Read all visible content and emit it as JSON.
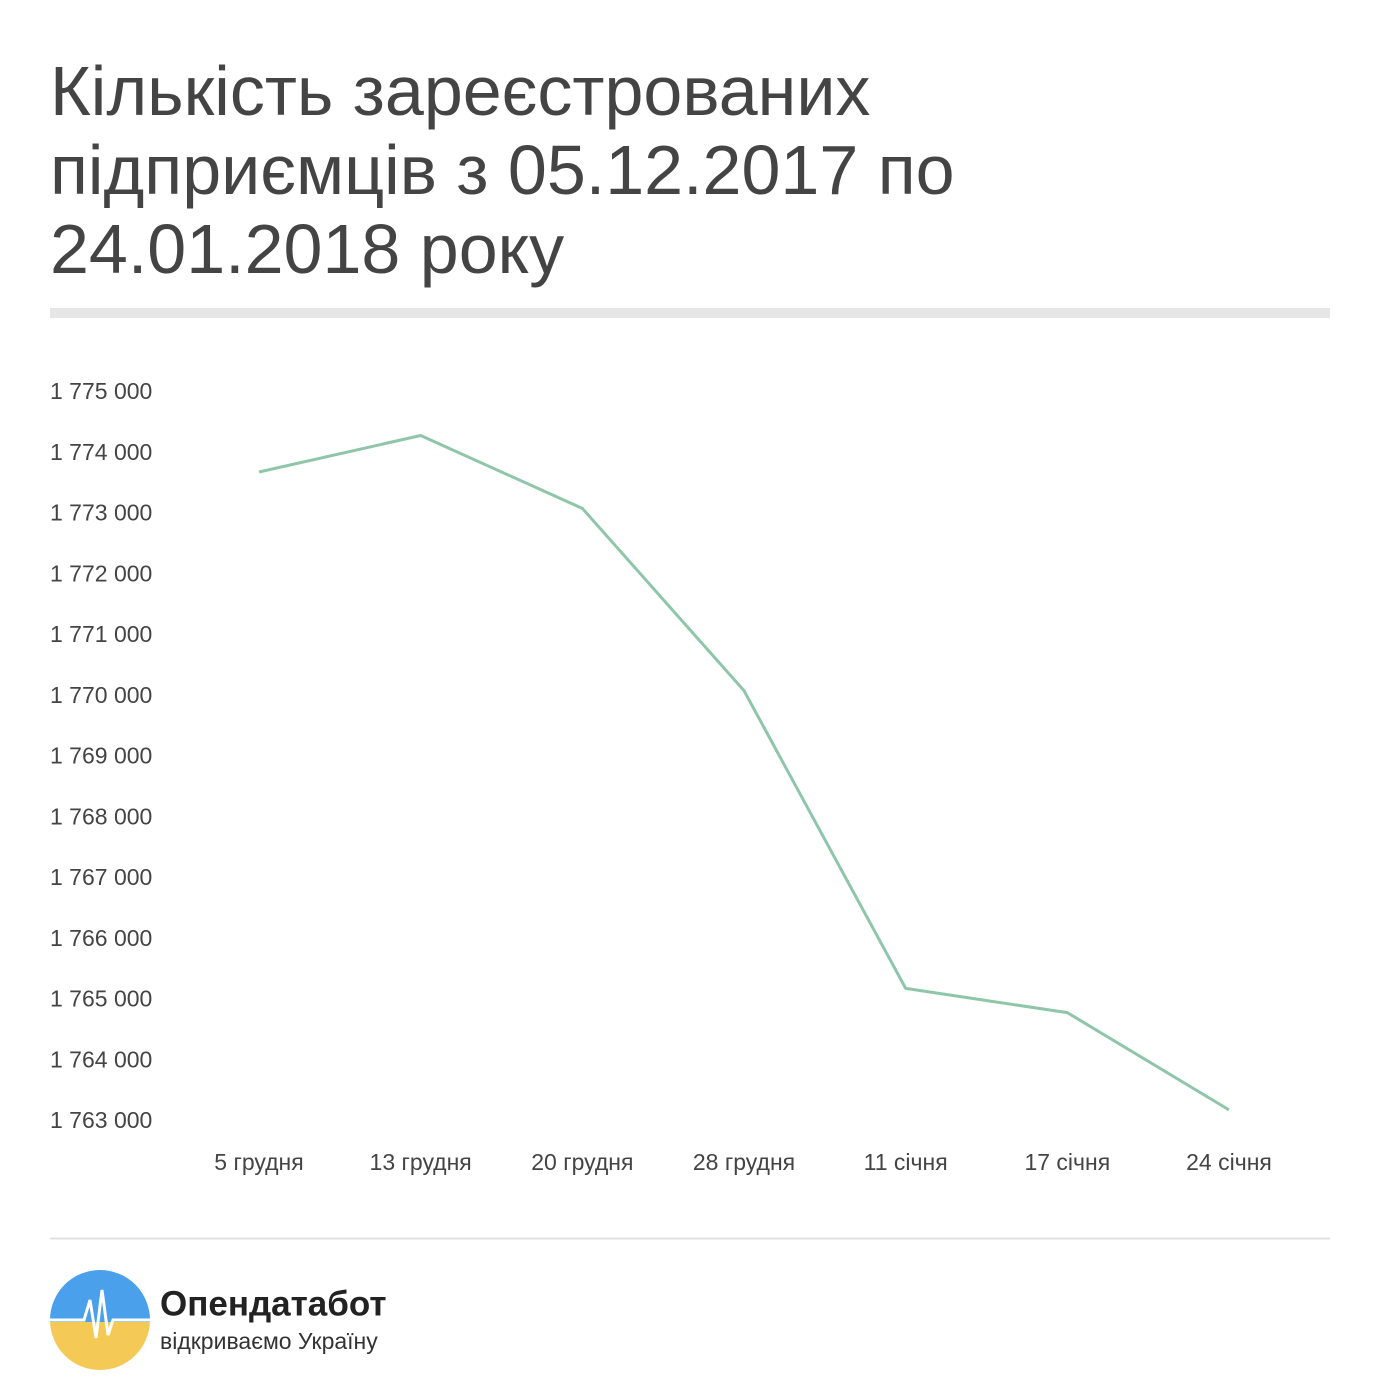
{
  "chart_data": {
    "type": "line",
    "title": "Кількість зареєстрованих підприємців з 05.12.2017 по 24.01.2018 року",
    "categories": [
      "5 грудня",
      "13 грудня",
      "20 грудня",
      "28 грудня",
      "11 січня",
      "17 січня",
      "24 січня"
    ],
    "values": [
      1773700,
      1774300,
      1773100,
      1770100,
      1765200,
      1764800,
      1763200
    ],
    "color": "#8fc6a9",
    "ylim": [
      1763000,
      1775000
    ],
    "yticks": [
      {
        "value": 1775000,
        "label": "1 775 000"
      },
      {
        "value": 1774000,
        "label": "1 774 000"
      },
      {
        "value": 1773000,
        "label": "1 773 000"
      },
      {
        "value": 1772000,
        "label": "1 772 000"
      },
      {
        "value": 1771000,
        "label": "1 771 000"
      },
      {
        "value": 1770000,
        "label": "1 770 000"
      },
      {
        "value": 1769000,
        "label": "1 769 000"
      },
      {
        "value": 1768000,
        "label": "1 768 000"
      },
      {
        "value": 1767000,
        "label": "1 767 000"
      },
      {
        "value": 1766000,
        "label": "1 766 000"
      },
      {
        "value": 1765000,
        "label": "1 765 000"
      },
      {
        "value": 1764000,
        "label": "1 764 000"
      },
      {
        "value": 1763000,
        "label": "1 763 000"
      }
    ],
    "grid": false
  },
  "footer": {
    "brand": "Опендатабот",
    "tagline": "відкриваємо Україну"
  }
}
